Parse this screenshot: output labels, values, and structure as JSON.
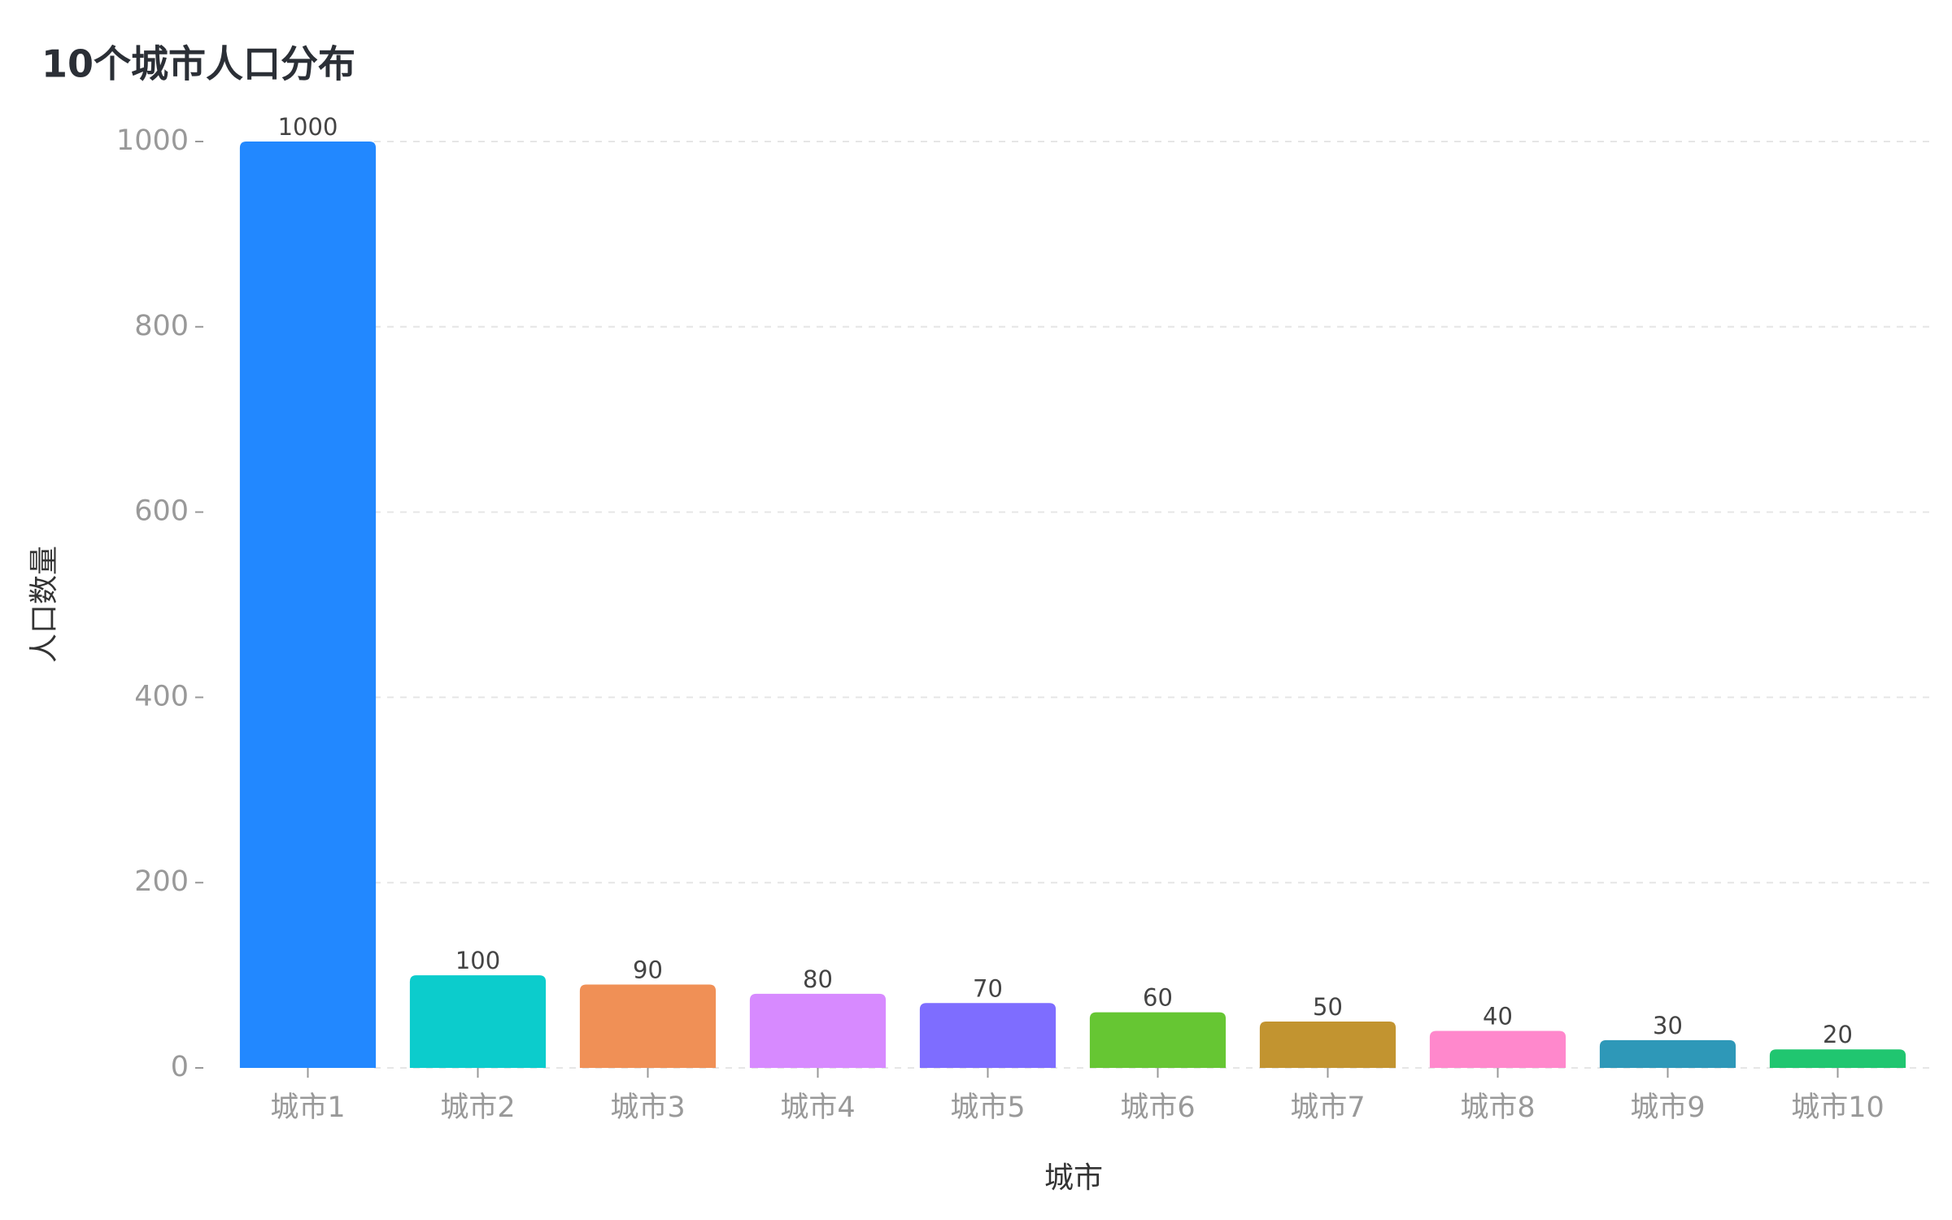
{
  "chart_data": {
    "type": "bar",
    "title": "10个城市人口分布",
    "x_label": "城市",
    "y_label": "人口数量",
    "categories": [
      "城市1",
      "城市2",
      "城市3",
      "城市4",
      "城市5",
      "城市6",
      "城市7",
      "城市8",
      "城市9",
      "城市10"
    ],
    "values": [
      1000,
      100,
      90,
      80,
      70,
      60,
      50,
      40,
      30,
      20
    ],
    "colors": [
      "#2288ff",
      "#0ccccc",
      "#f09056",
      "#d78aff",
      "#7e6dff",
      "#66c633",
      "#c29430",
      "#ff88cc",
      "#2e98b8",
      "#20c670"
    ],
    "ylim": [
      0,
      1000
    ],
    "yticks": [
      0,
      200,
      400,
      600,
      800,
      1000
    ],
    "grid": true
  }
}
